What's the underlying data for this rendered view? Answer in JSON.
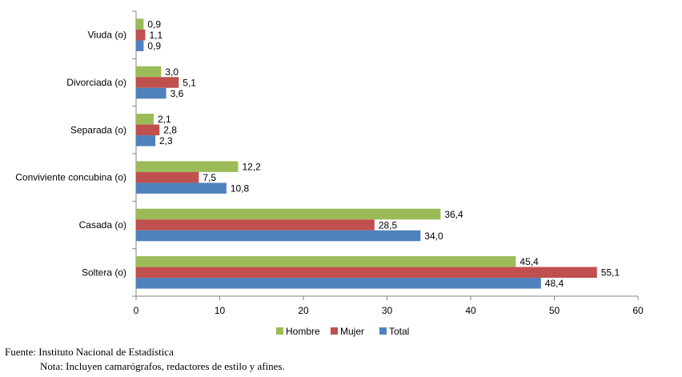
{
  "chart_data": {
    "type": "bar",
    "orientation": "horizontal",
    "categories": [
      "Viuda (o)",
      "Divorciada (o)",
      "Separada (o)",
      "Conviviente concubina (o)",
      "Casada (o)",
      "Soltera (o)"
    ],
    "series": [
      {
        "name": "Hombre",
        "color": "#9bbb59",
        "values": [
          0.9,
          3.0,
          2.1,
          12.2,
          36.4,
          45.4
        ],
        "labels": [
          "0,9",
          "3,0",
          "2,1",
          "12,2",
          "36,4",
          "45,4"
        ]
      },
      {
        "name": "Mujer",
        "color": "#c0504d",
        "values": [
          1.1,
          5.1,
          2.8,
          7.5,
          28.5,
          55.1
        ],
        "labels": [
          "1,1",
          "5,1",
          "2,8",
          "7,5",
          "28,5",
          "55,1"
        ]
      },
      {
        "name": "Total",
        "color": "#4f81bd",
        "values": [
          0.9,
          3.6,
          2.3,
          10.8,
          34.0,
          48.4
        ],
        "labels": [
          "0,9",
          "3,6",
          "2,3",
          "10,8",
          "34,0",
          "48,4"
        ]
      }
    ],
    "xlim": [
      0,
      60
    ],
    "xticks": [
      0,
      10,
      20,
      30,
      40,
      50,
      60
    ],
    "grid": false,
    "legend": "bottom-center"
  },
  "footer": {
    "source": "Fuente: Instituto Nacional de Estadística",
    "note": "Nota: Incluyen camarógrafos, redactores de estilo y afines."
  }
}
